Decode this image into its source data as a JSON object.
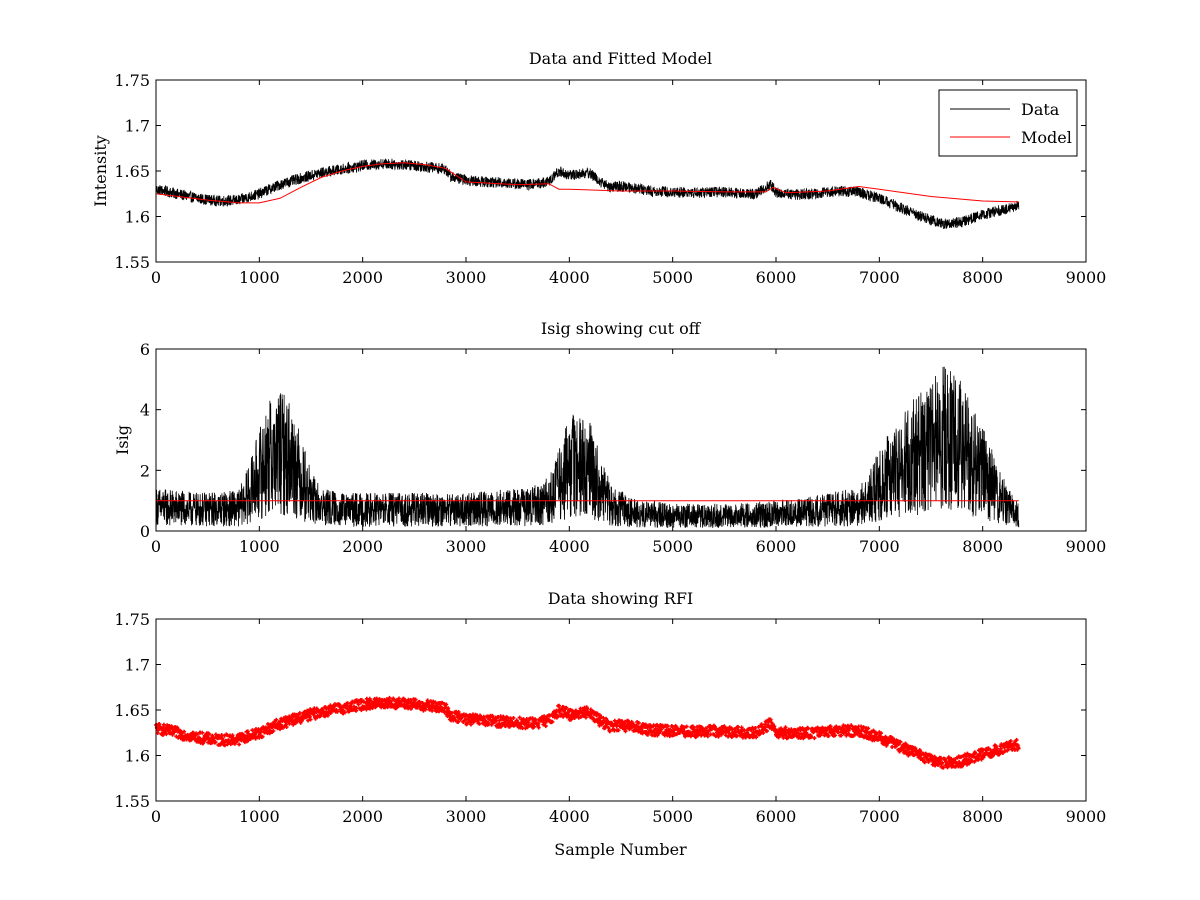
{
  "figure": {
    "background": "#ffffff",
    "data_color": "#000000",
    "model_color": "#ff0000"
  },
  "chart_data": [
    {
      "type": "line",
      "title": "Data and Fitted Model",
      "xlabel": "",
      "ylabel": "Intensity",
      "xlim": [
        0,
        9000
      ],
      "ylim": [
        1.55,
        1.75
      ],
      "xticks": [
        0,
        1000,
        2000,
        3000,
        4000,
        5000,
        6000,
        7000,
        8000,
        9000
      ],
      "xtick_labels": [
        "0",
        "1000",
        "2000",
        "3000",
        "4000",
        "5000",
        "6000",
        "7000",
        "8000",
        "9000"
      ],
      "yticks": [
        1.55,
        1.6,
        1.65,
        1.7,
        1.75
      ],
      "ytick_labels": [
        "1.55",
        "1.6",
        "1.65",
        "1.7",
        "1.75"
      ],
      "grid": false,
      "legend": "top-right",
      "series": [
        {
          "name": "Data",
          "color": "#000000",
          "noise": 0.006,
          "x": [
            0,
            200,
            400,
            600,
            800,
            1000,
            1200,
            1400,
            1600,
            1800,
            2000,
            2200,
            2400,
            2600,
            2800,
            2850,
            3000,
            3200,
            3400,
            3600,
            3800,
            3900,
            4000,
            4100,
            4200,
            4300,
            4400,
            4500,
            4600,
            4800,
            5000,
            5200,
            5400,
            5600,
            5800,
            5950,
            6000,
            6200,
            6400,
            6600,
            6800,
            7000,
            7200,
            7400,
            7600,
            7800,
            8000,
            8200,
            8350
          ],
          "y": [
            1.63,
            1.625,
            1.62,
            1.617,
            1.618,
            1.625,
            1.635,
            1.642,
            1.648,
            1.652,
            1.656,
            1.658,
            1.657,
            1.655,
            1.652,
            1.644,
            1.64,
            1.638,
            1.637,
            1.635,
            1.638,
            1.65,
            1.645,
            1.647,
            1.648,
            1.638,
            1.632,
            1.633,
            1.632,
            1.628,
            1.627,
            1.626,
            1.627,
            1.626,
            1.625,
            1.635,
            1.626,
            1.624,
            1.625,
            1.628,
            1.627,
            1.62,
            1.61,
            1.6,
            1.592,
            1.594,
            1.602,
            1.608,
            1.612
          ]
        },
        {
          "name": "Model",
          "color": "#ff0000",
          "noise": 0,
          "x": [
            0,
            500,
            800,
            1000,
            1200,
            1400,
            1600,
            1800,
            2000,
            2200,
            2400,
            2600,
            2800,
            3000,
            3500,
            3800,
            3900,
            4000,
            4500,
            5000,
            5500,
            5900,
            5970,
            6100,
            6500,
            6800,
            7000,
            7500,
            8000,
            8350
          ],
          "y": [
            1.625,
            1.618,
            1.615,
            1.615,
            1.62,
            1.632,
            1.643,
            1.65,
            1.655,
            1.658,
            1.659,
            1.657,
            1.653,
            1.638,
            1.635,
            1.636,
            1.63,
            1.63,
            1.628,
            1.628,
            1.627,
            1.627,
            1.632,
            1.626,
            1.628,
            1.633,
            1.63,
            1.622,
            1.617,
            1.616
          ]
        }
      ]
    },
    {
      "type": "line",
      "title": "Isig showing cut off",
      "xlabel": "",
      "ylabel": "Isig",
      "xlim": [
        0,
        9000
      ],
      "ylim": [
        0,
        6
      ],
      "xticks": [
        0,
        1000,
        2000,
        3000,
        4000,
        5000,
        6000,
        7000,
        8000,
        9000
      ],
      "xtick_labels": [
        "0",
        "1000",
        "2000",
        "3000",
        "4000",
        "5000",
        "6000",
        "7000",
        "8000",
        "9000"
      ],
      "yticks": [
        0,
        2,
        4,
        6
      ],
      "ytick_labels": [
        "0",
        "2",
        "4",
        "6"
      ],
      "grid": false,
      "series": [
        {
          "color": "#000000",
          "noise": 0.55,
          "x": [
            0,
            400,
            800,
            900,
            1000,
            1100,
            1200,
            1300,
            1400,
            1500,
            1600,
            1800,
            2400,
            3000,
            3600,
            3800,
            3900,
            4000,
            4100,
            4200,
            4300,
            4400,
            4600,
            5000,
            5600,
            6200,
            6800,
            6900,
            7000,
            7200,
            7400,
            7600,
            7700,
            7800,
            8000,
            8200,
            8350
          ],
          "y": [
            0.8,
            0.7,
            0.75,
            1.2,
            1.9,
            2.4,
            2.6,
            2.4,
            1.8,
            1.1,
            0.8,
            0.7,
            0.7,
            0.7,
            0.8,
            1.0,
            1.5,
            2.1,
            2.2,
            2.0,
            1.4,
            0.9,
            0.6,
            0.5,
            0.5,
            0.6,
            0.8,
            1.1,
            1.6,
            2.1,
            2.6,
            3.0,
            3.1,
            2.7,
            1.9,
            1.0,
            0.5
          ]
        },
        {
          "color": "#ff0000",
          "noise": 0,
          "x": [
            0,
            8350
          ],
          "y": [
            1,
            1
          ]
        }
      ]
    },
    {
      "type": "scatter",
      "title": "Data showing RFI",
      "xlabel": "Sample Number",
      "ylabel": "",
      "xlim": [
        0,
        9000
      ],
      "ylim": [
        1.55,
        1.75
      ],
      "xticks": [
        0,
        1000,
        2000,
        3000,
        4000,
        5000,
        6000,
        7000,
        8000,
        9000
      ],
      "xtick_labels": [
        "0",
        "1000",
        "2000",
        "3000",
        "4000",
        "5000",
        "6000",
        "7000",
        "8000",
        "9000"
      ],
      "yticks": [
        1.55,
        1.6,
        1.65,
        1.7,
        1.75
      ],
      "ytick_labels": [
        "1.55",
        "1.6",
        "1.65",
        "1.7",
        "1.75"
      ],
      "grid": false,
      "series": [
        {
          "color": "#ff0000",
          "noise": 0.006,
          "marker": "dot",
          "x": [
            0,
            200,
            400,
            600,
            800,
            1000,
            1200,
            1400,
            1600,
            1800,
            2000,
            2200,
            2400,
            2600,
            2800,
            2850,
            3000,
            3200,
            3400,
            3600,
            3800,
            3900,
            4000,
            4100,
            4200,
            4300,
            4400,
            4500,
            4600,
            4800,
            5000,
            5200,
            5400,
            5600,
            5800,
            5950,
            6000,
            6200,
            6400,
            6600,
            6800,
            7000,
            7200,
            7400,
            7600,
            7800,
            8000,
            8200,
            8350
          ],
          "y": [
            1.63,
            1.625,
            1.62,
            1.617,
            1.618,
            1.625,
            1.635,
            1.642,
            1.648,
            1.652,
            1.656,
            1.658,
            1.657,
            1.655,
            1.652,
            1.644,
            1.64,
            1.638,
            1.637,
            1.635,
            1.638,
            1.65,
            1.645,
            1.647,
            1.648,
            1.638,
            1.632,
            1.633,
            1.632,
            1.628,
            1.627,
            1.626,
            1.627,
            1.626,
            1.625,
            1.635,
            1.626,
            1.624,
            1.625,
            1.628,
            1.627,
            1.62,
            1.61,
            1.6,
            1.592,
            1.594,
            1.602,
            1.608,
            1.612
          ]
        }
      ]
    }
  ]
}
